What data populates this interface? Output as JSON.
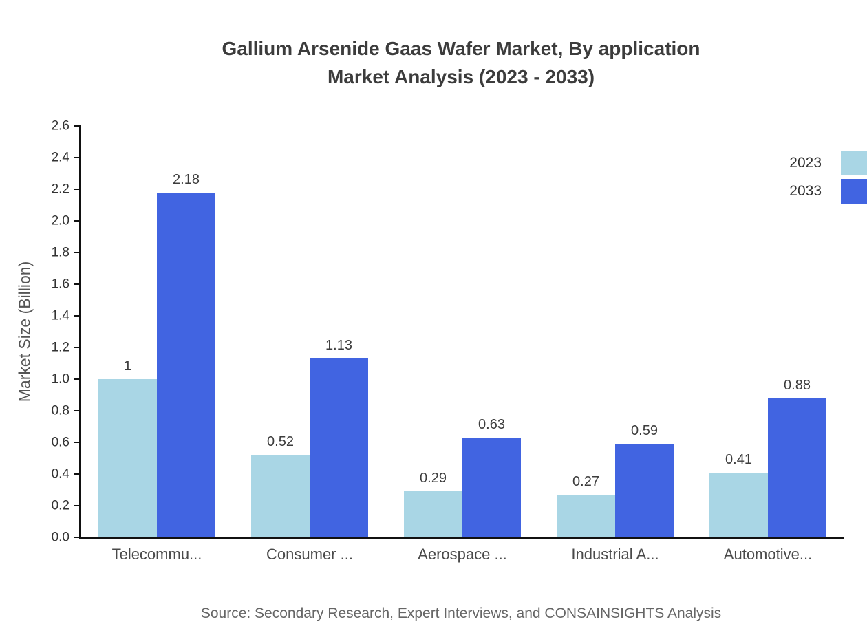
{
  "title": {
    "line1": "Gallium Arsenide Gaas Wafer Market, By application",
    "line2": "Market Analysis (2023 - 2033)"
  },
  "source": "Source: Secondary Research, Expert Interviews, and CONSAINSIGHTS Analysis",
  "chart_data": {
    "type": "bar",
    "title": "Gallium Arsenide Gaas Wafer Market, By application Market Analysis (2023 - 2033)",
    "categories": [
      "Telecommu...",
      "Consumer ...",
      "Aerospace ...",
      "Industrial A...",
      "Automotive..."
    ],
    "series": [
      {
        "name": "2023",
        "color": "#a9d6e5",
        "values": [
          1,
          0.52,
          0.29,
          0.27,
          0.41
        ]
      },
      {
        "name": "2033",
        "color": "#4164e1",
        "values": [
          2.18,
          1.13,
          0.63,
          0.59,
          0.88
        ]
      }
    ],
    "xlabel": "",
    "ylabel": "Market Size (Billion)",
    "ylim": [
      0,
      2.6
    ],
    "ytick_step": 0.2,
    "grid": false,
    "legend_position": "top-right"
  }
}
